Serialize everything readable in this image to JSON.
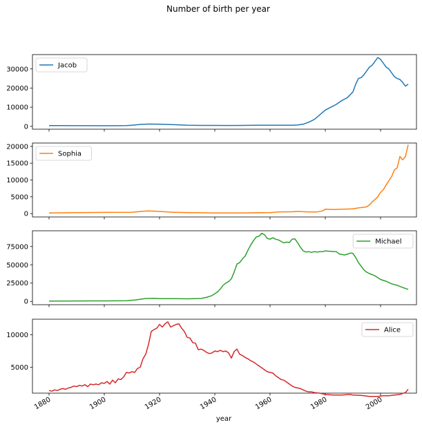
{
  "chart_data": {
    "type": "line",
    "title": "Number of birth per year",
    "xlabel": "year",
    "xlim": [
      1874,
      2013
    ],
    "x_ticks": [
      1880,
      1900,
      1920,
      1940,
      1960,
      1980,
      2000
    ],
    "x_tick_labels": [
      "1880",
      "1900",
      "1920",
      "1940",
      "1960",
      "1980",
      "2000"
    ],
    "subplots": [
      {
        "name": "Jacob",
        "color": "#1f77b4",
        "legend": "top-left",
        "ylim": [
          -1500,
          37500
        ],
        "y_ticks": [
          0,
          10000,
          20000,
          30000
        ],
        "y_tick_labels": [
          "0",
          "10000",
          "20000",
          "30000"
        ],
        "points": [
          [
            1880,
            400
          ],
          [
            1885,
            380
          ],
          [
            1890,
            350
          ],
          [
            1895,
            330
          ],
          [
            1900,
            320
          ],
          [
            1905,
            350
          ],
          [
            1908,
            400
          ],
          [
            1910,
            550
          ],
          [
            1913,
            1000
          ],
          [
            1916,
            1200
          ],
          [
            1920,
            1150
          ],
          [
            1925,
            900
          ],
          [
            1930,
            600
          ],
          [
            1935,
            500
          ],
          [
            1940,
            500
          ],
          [
            1945,
            450
          ],
          [
            1950,
            500
          ],
          [
            1955,
            600
          ],
          [
            1960,
            550
          ],
          [
            1965,
            550
          ],
          [
            1968,
            600
          ],
          [
            1970,
            700
          ],
          [
            1972,
            1100
          ],
          [
            1974,
            2200
          ],
          [
            1976,
            3600
          ],
          [
            1978,
            6000
          ],
          [
            1980,
            8500
          ],
          [
            1982,
            10000
          ],
          [
            1984,
            11500
          ],
          [
            1986,
            13500
          ],
          [
            1988,
            15000
          ],
          [
            1990,
            18000
          ],
          [
            1991,
            22000
          ],
          [
            1992,
            25000
          ],
          [
            1993,
            25500
          ],
          [
            1994,
            27000
          ],
          [
            1995,
            29000
          ],
          [
            1996,
            31000
          ],
          [
            1997,
            32000
          ],
          [
            1998,
            34000
          ],
          [
            1999,
            36000
          ],
          [
            2000,
            35000
          ],
          [
            2001,
            33000
          ],
          [
            2002,
            31000
          ],
          [
            2003,
            30000
          ],
          [
            2004,
            28000
          ],
          [
            2005,
            26000
          ],
          [
            2006,
            25000
          ],
          [
            2007,
            24500
          ],
          [
            2008,
            23000
          ],
          [
            2009,
            21000
          ],
          [
            2010,
            22000
          ]
        ]
      },
      {
        "name": "Sophia",
        "color": "#ff7f0e",
        "legend": "top-left",
        "ylim": [
          -1000,
          21000
        ],
        "y_ticks": [
          0,
          5000,
          10000,
          15000,
          20000
        ],
        "y_tick_labels": [
          "0",
          "5000",
          "10000",
          "15000",
          "20000"
        ],
        "points": [
          [
            1880,
            200
          ],
          [
            1890,
            300
          ],
          [
            1900,
            350
          ],
          [
            1910,
            400
          ],
          [
            1914,
            700
          ],
          [
            1916,
            800
          ],
          [
            1920,
            650
          ],
          [
            1925,
            400
          ],
          [
            1930,
            300
          ],
          [
            1935,
            250
          ],
          [
            1940,
            200
          ],
          [
            1950,
            200
          ],
          [
            1960,
            300
          ],
          [
            1963,
            500
          ],
          [
            1968,
            550
          ],
          [
            1970,
            650
          ],
          [
            1974,
            500
          ],
          [
            1977,
            500
          ],
          [
            1979,
            800
          ],
          [
            1980,
            1300
          ],
          [
            1983,
            1200
          ],
          [
            1986,
            1300
          ],
          [
            1990,
            1400
          ],
          [
            1992,
            1700
          ],
          [
            1995,
            2000
          ],
          [
            1996,
            2600
          ],
          [
            1997,
            3500
          ],
          [
            1998,
            4200
          ],
          [
            1999,
            5000
          ],
          [
            2000,
            6300
          ],
          [
            2001,
            7100
          ],
          [
            2002,
            8500
          ],
          [
            2003,
            9800
          ],
          [
            2004,
            11000
          ],
          [
            2005,
            13000
          ],
          [
            2006,
            13600
          ],
          [
            2007,
            17000
          ],
          [
            2008,
            16000
          ],
          [
            2009,
            17000
          ],
          [
            2010,
            20500
          ]
        ]
      },
      {
        "name": "Michael",
        "color": "#2ca02c",
        "legend": "top-right",
        "ylim": [
          -4500,
          96500
        ],
        "y_ticks": [
          0,
          25000,
          50000,
          75000
        ],
        "y_tick_labels": [
          "0",
          "25000",
          "50000",
          "75000"
        ],
        "points": [
          [
            1880,
            500
          ],
          [
            1890,
            600
          ],
          [
            1900,
            700
          ],
          [
            1908,
            900
          ],
          [
            1911,
            1800
          ],
          [
            1913,
            3000
          ],
          [
            1915,
            4000
          ],
          [
            1918,
            4200
          ],
          [
            1920,
            3800
          ],
          [
            1925,
            3800
          ],
          [
            1930,
            3500
          ],
          [
            1935,
            4000
          ],
          [
            1937,
            5500
          ],
          [
            1939,
            8000
          ],
          [
            1941,
            13000
          ],
          [
            1942,
            17000
          ],
          [
            1943,
            22000
          ],
          [
            1944,
            25000
          ],
          [
            1945,
            27000
          ],
          [
            1946,
            31000
          ],
          [
            1947,
            40000
          ],
          [
            1948,
            51000
          ],
          [
            1949,
            53000
          ],
          [
            1950,
            58000
          ],
          [
            1951,
            62000
          ],
          [
            1952,
            70000
          ],
          [
            1953,
            77000
          ],
          [
            1954,
            83000
          ],
          [
            1955,
            88000
          ],
          [
            1956,
            89000
          ],
          [
            1957,
            93000
          ],
          [
            1958,
            91000
          ],
          [
            1959,
            86000
          ],
          [
            1960,
            85000
          ],
          [
            1961,
            87000
          ],
          [
            1962,
            85000
          ],
          [
            1963,
            84000
          ],
          [
            1964,
            82000
          ],
          [
            1965,
            80000
          ],
          [
            1966,
            81000
          ],
          [
            1967,
            80500
          ],
          [
            1968,
            85000
          ],
          [
            1969,
            85500
          ],
          [
            1970,
            80000
          ],
          [
            1971,
            74000
          ],
          [
            1972,
            69000
          ],
          [
            1973,
            67500
          ],
          [
            1974,
            68000
          ],
          [
            1975,
            67000
          ],
          [
            1976,
            68000
          ],
          [
            1977,
            67500
          ],
          [
            1978,
            68000
          ],
          [
            1979,
            68000
          ],
          [
            1980,
            69000
          ],
          [
            1982,
            68500
          ],
          [
            1984,
            68000
          ],
          [
            1985,
            65000
          ],
          [
            1986,
            64000
          ],
          [
            1987,
            63500
          ],
          [
            1988,
            64500
          ],
          [
            1989,
            66000
          ],
          [
            1990,
            65500
          ],
          [
            1991,
            60000
          ],
          [
            1992,
            53000
          ],
          [
            1993,
            48000
          ],
          [
            1994,
            43000
          ],
          [
            1995,
            40000
          ],
          [
            1996,
            38000
          ],
          [
            1998,
            35000
          ],
          [
            2000,
            30000
          ],
          [
            2002,
            27500
          ],
          [
            2004,
            24000
          ],
          [
            2006,
            22000
          ],
          [
            2008,
            19000
          ],
          [
            2010,
            16500
          ]
        ]
      },
      {
        "name": "Alice",
        "color": "#d62728",
        "legend": "top-right",
        "ylim": [
          1000,
          12400
        ],
        "y_ticks": [
          5000,
          10000
        ],
        "y_tick_labels": [
          "5000",
          "10000"
        ],
        "points": [
          [
            1880,
            1400
          ],
          [
            1881,
            1300
          ],
          [
            1882,
            1500
          ],
          [
            1883,
            1400
          ],
          [
            1884,
            1600
          ],
          [
            1885,
            1700
          ],
          [
            1886,
            1600
          ],
          [
            1887,
            1800
          ],
          [
            1888,
            1900
          ],
          [
            1889,
            2100
          ],
          [
            1890,
            2000
          ],
          [
            1891,
            2200
          ],
          [
            1892,
            2100
          ],
          [
            1893,
            2300
          ],
          [
            1894,
            2000
          ],
          [
            1895,
            2400
          ],
          [
            1896,
            2300
          ],
          [
            1897,
            2400
          ],
          [
            1898,
            2300
          ],
          [
            1899,
            2600
          ],
          [
            1900,
            2500
          ],
          [
            1901,
            2800
          ],
          [
            1902,
            2400
          ],
          [
            1903,
            3000
          ],
          [
            1904,
            2600
          ],
          [
            1905,
            3200
          ],
          [
            1906,
            3100
          ],
          [
            1907,
            3500
          ],
          [
            1908,
            4200
          ],
          [
            1909,
            4100
          ],
          [
            1910,
            4300
          ],
          [
            1911,
            4200
          ],
          [
            1912,
            4800
          ],
          [
            1913,
            5000
          ],
          [
            1914,
            6300
          ],
          [
            1915,
            7000
          ],
          [
            1916,
            8500
          ],
          [
            1917,
            10500
          ],
          [
            1918,
            10800
          ],
          [
            1919,
            11000
          ],
          [
            1920,
            11600
          ],
          [
            1921,
            11200
          ],
          [
            1922,
            11700
          ],
          [
            1923,
            12000
          ],
          [
            1924,
            11200
          ],
          [
            1925,
            11400
          ],
          [
            1926,
            11600
          ],
          [
            1927,
            11700
          ],
          [
            1928,
            11000
          ],
          [
            1929,
            10500
          ],
          [
            1930,
            9600
          ],
          [
            1931,
            9500
          ],
          [
            1932,
            8800
          ],
          [
            1933,
            8700
          ],
          [
            1934,
            7700
          ],
          [
            1935,
            7800
          ],
          [
            1936,
            7600
          ],
          [
            1937,
            7300
          ],
          [
            1938,
            7100
          ],
          [
            1939,
            7200
          ],
          [
            1940,
            7500
          ],
          [
            1941,
            7400
          ],
          [
            1942,
            7600
          ],
          [
            1943,
            7400
          ],
          [
            1944,
            7500
          ],
          [
            1945,
            7200
          ],
          [
            1946,
            6400
          ],
          [
            1947,
            7400
          ],
          [
            1948,
            7800
          ],
          [
            1949,
            7000
          ],
          [
            1950,
            6800
          ],
          [
            1951,
            6500
          ],
          [
            1952,
            6300
          ],
          [
            1953,
            6000
          ],
          [
            1954,
            5800
          ],
          [
            1955,
            5500
          ],
          [
            1956,
            5200
          ],
          [
            1957,
            4900
          ],
          [
            1958,
            4600
          ],
          [
            1959,
            4300
          ],
          [
            1960,
            4200
          ],
          [
            1961,
            4100
          ],
          [
            1962,
            3700
          ],
          [
            1963,
            3400
          ],
          [
            1964,
            3100
          ],
          [
            1965,
            3000
          ],
          [
            1966,
            2700
          ],
          [
            1967,
            2400
          ],
          [
            1968,
            2100
          ],
          [
            1969,
            1900
          ],
          [
            1970,
            1800
          ],
          [
            1971,
            1700
          ],
          [
            1972,
            1500
          ],
          [
            1973,
            1300
          ],
          [
            1974,
            1200
          ],
          [
            1975,
            1200
          ],
          [
            1976,
            1100
          ],
          [
            1978,
            1000
          ],
          [
            1980,
            800
          ],
          [
            1983,
            700
          ],
          [
            1986,
            700
          ],
          [
            1989,
            800
          ],
          [
            1990,
            700
          ],
          [
            1993,
            650
          ],
          [
            1996,
            500
          ],
          [
            1999,
            500
          ],
          [
            2001,
            600
          ],
          [
            2003,
            600
          ],
          [
            2005,
            700
          ],
          [
            2007,
            800
          ],
          [
            2009,
            1100
          ],
          [
            2010,
            1600
          ]
        ]
      }
    ]
  }
}
